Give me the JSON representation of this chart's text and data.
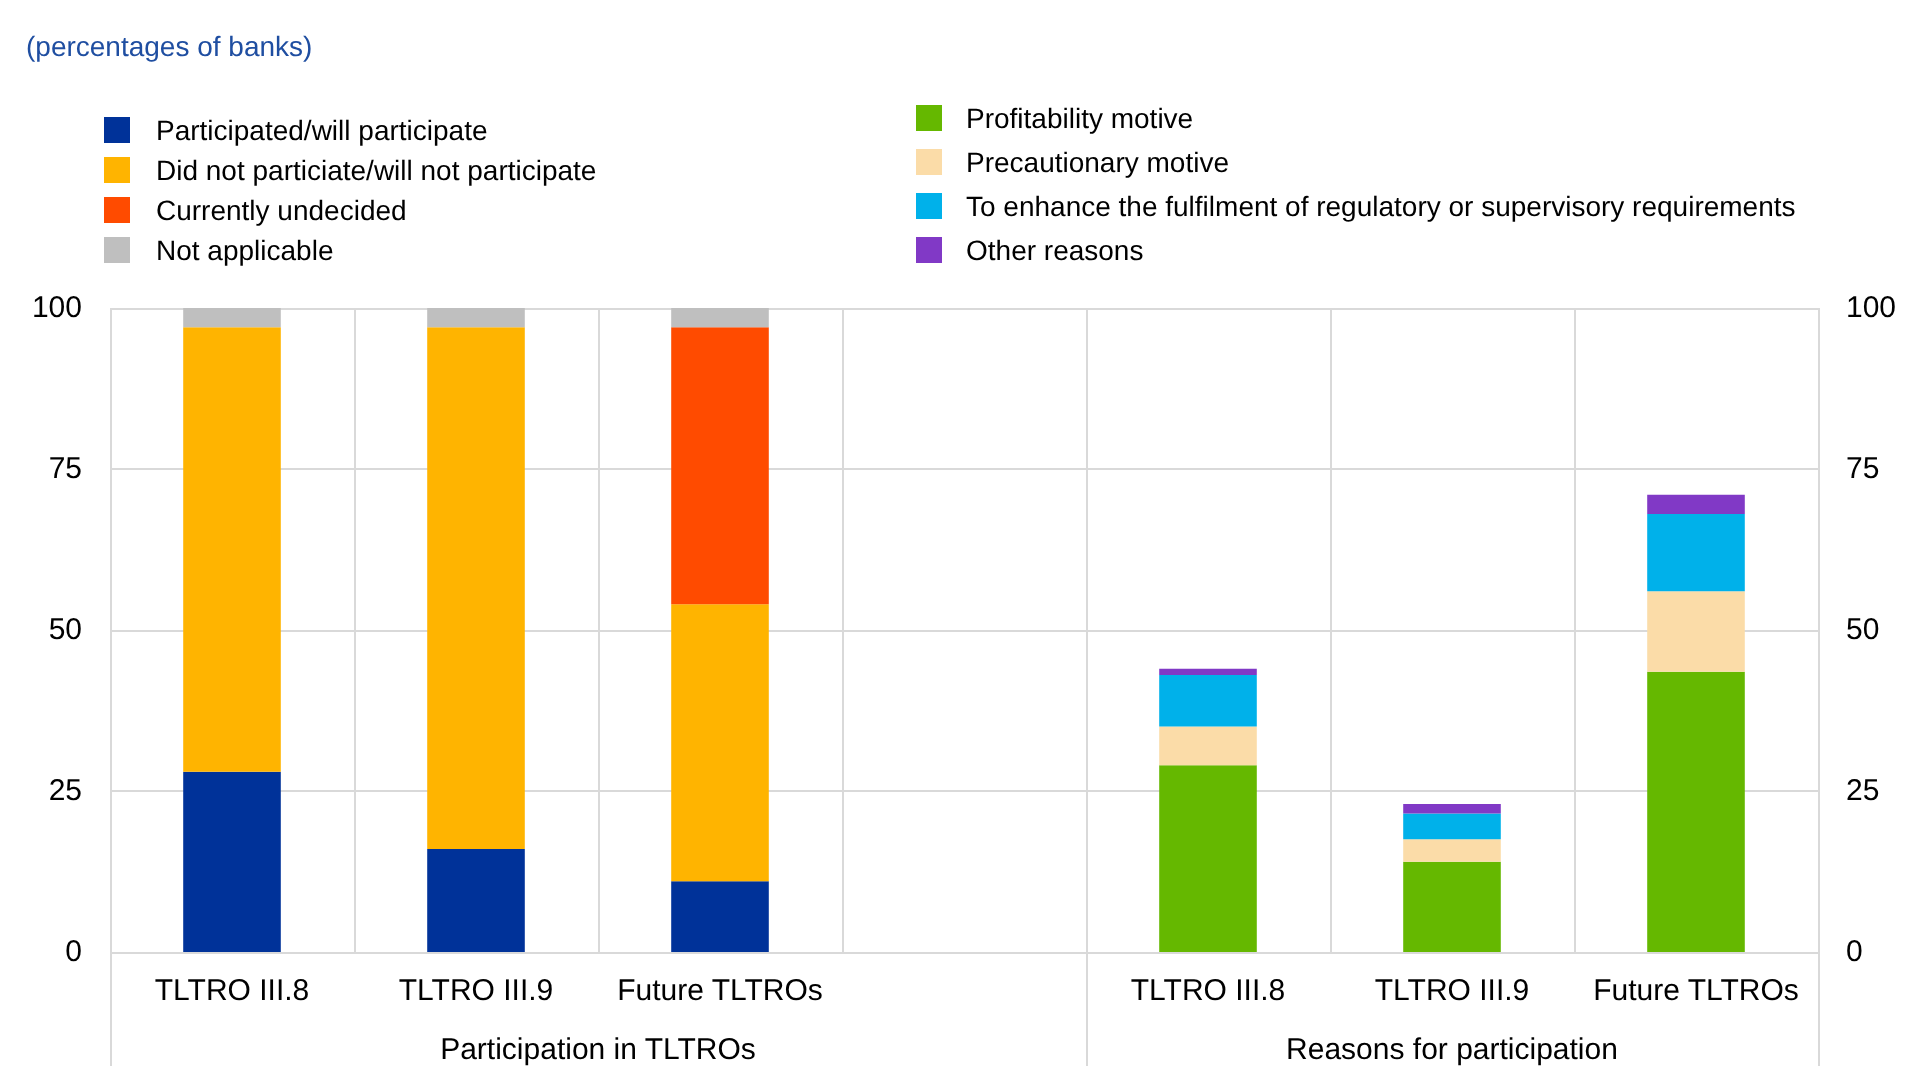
{
  "chart_data": {
    "type": "bar",
    "subtitle": "(percentages of banks)",
    "categories": [
      "TLTRO III.8",
      "TLTRO III.9",
      "Future TLTROs",
      null,
      "TLTRO III.8",
      "TLTRO III.9",
      "Future TLTROs"
    ],
    "series": [
      {
        "name": "Participated/will participate",
        "color": "#003299",
        "values": [
          28,
          16,
          11,
          null,
          null,
          null,
          null
        ]
      },
      {
        "name": "Did not particiate/will not participate",
        "color": "#ffb400",
        "values": [
          69,
          81,
          43,
          null,
          null,
          null,
          null
        ]
      },
      {
        "name": "Currently undecided",
        "color": "#ff4b00",
        "values": [
          null,
          null,
          43,
          null,
          null,
          null,
          null
        ]
      },
      {
        "name": "Not applicable",
        "color": "#bfbfbf",
        "values": [
          3,
          3,
          3,
          null,
          null,
          null,
          null
        ]
      },
      {
        "name": "Profitability motive",
        "color": "#65b800",
        "values": [
          null,
          null,
          null,
          null,
          29,
          14,
          43.5
        ]
      },
      {
        "name": "Precautionary motive",
        "color": "#fbdca8",
        "values": [
          null,
          null,
          null,
          null,
          6,
          3.5,
          12.5
        ]
      },
      {
        "name": "To enhance the fulfilment of regulatory or supervisory requirements",
        "color": "#00b1ea",
        "values": [
          null,
          null,
          null,
          null,
          8,
          4,
          12
        ]
      },
      {
        "name": "Other reasons",
        "color": "#8139c6",
        "values": [
          null,
          null,
          null,
          null,
          1,
          1.5,
          3
        ]
      }
    ],
    "stacked": true,
    "ylim": [
      0,
      100
    ],
    "yticks": [
      0,
      25,
      50,
      75,
      100
    ],
    "y2lim": [
      0,
      100
    ],
    "y2ticks": [
      0,
      25,
      50,
      75,
      100
    ],
    "grid": true,
    "legend": "top",
    "annotations": [
      "Participation in TLTROs",
      "Reasons for participation"
    ]
  }
}
